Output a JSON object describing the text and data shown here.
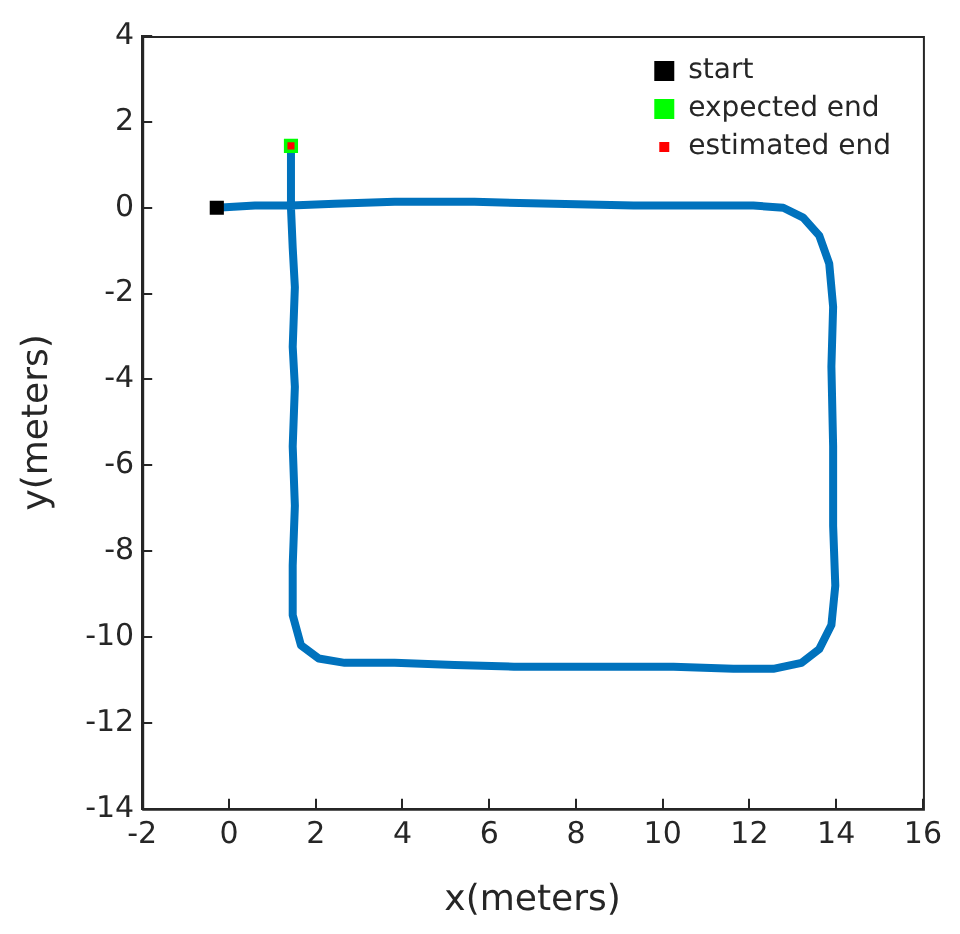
{
  "chart_data": {
    "type": "line",
    "xlabel": "x(meters)",
    "ylabel": "y(meters)",
    "xlim": [
      -2,
      16
    ],
    "xticks": [
      -2,
      0,
      2,
      4,
      6,
      8,
      10,
      12,
      14,
      16
    ],
    "ylim": [
      -14,
      4
    ],
    "yticks": [
      -14,
      -12,
      -10,
      -8,
      -6,
      -4,
      -2,
      0,
      2,
      4
    ],
    "grid": false,
    "legend": "top right",
    "line_style": "solid",
    "series": [
      {
        "color": "#0072bd",
        "marker": "none",
        "x": [
          -0.28,
          0.6,
          1.43,
          2.44,
          3.82,
          5.66,
          7.49,
          9.33,
          11.17,
          12.09,
          12.78,
          13.24,
          13.61,
          13.84,
          13.93,
          13.89,
          13.93,
          13.93,
          13.98,
          13.89,
          13.61,
          13.2,
          12.55,
          11.63,
          10.25,
          8.41,
          6.57,
          5.2,
          3.82,
          2.67,
          2.07,
          1.66,
          1.47,
          1.47,
          1.52,
          1.47,
          1.52,
          1.47,
          1.52,
          1.47,
          1.43,
          1.43
        ],
        "values": [
          0,
          0.05,
          0.05,
          0.09,
          0.14,
          0.14,
          0.09,
          0.05,
          0.05,
          0.05,
          0,
          -0.23,
          -0.65,
          -1.3,
          -2.31,
          -3.7,
          -5.56,
          -7.41,
          -8.8,
          -9.72,
          -10.28,
          -10.6,
          -10.74,
          -10.74,
          -10.69,
          -10.69,
          -10.69,
          -10.65,
          -10.6,
          -10.6,
          -10.5,
          -10.19,
          -9.49,
          -8.33,
          -6.94,
          -5.56,
          -4.17,
          -3.24,
          -1.85,
          -0.93,
          0,
          1.44
        ]
      },
      {
        "type": "scatter",
        "name": "start",
        "color": "#000000",
        "marker": "square",
        "x": [
          -0.28
        ],
        "values": [
          0
        ]
      },
      {
        "type": "scatter",
        "name": "expected end",
        "color": "#00ff00",
        "marker": "square",
        "x": [
          1.43
        ],
        "values": [
          1.44
        ]
      },
      {
        "type": "scatter",
        "name": "estimated end",
        "color": "#ff0000",
        "marker": "square",
        "x": [
          1.43
        ],
        "values": [
          1.44
        ]
      }
    ]
  }
}
